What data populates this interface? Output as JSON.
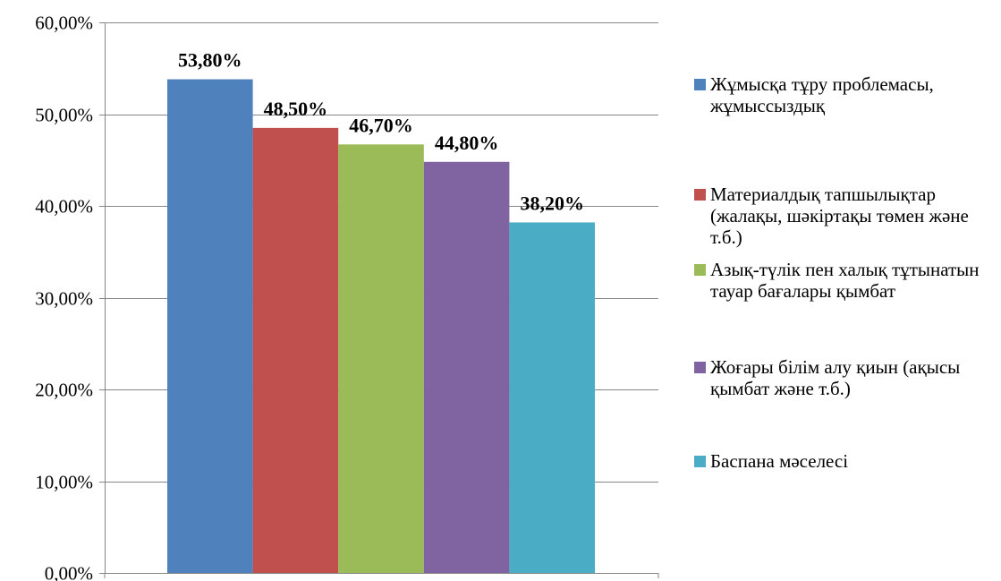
{
  "chart_data": {
    "type": "bar",
    "title": "",
    "xlabel": "",
    "ylabel": "",
    "ylim": [
      0,
      60
    ],
    "ytick_values": [
      0,
      10,
      20,
      30,
      40,
      50,
      60
    ],
    "ytick_labels": [
      "0,00%",
      "10,00%",
      "20,00%",
      "30,00%",
      "40,00%",
      "50,00%",
      "60,00%"
    ],
    "grid": true,
    "legend_position": "right",
    "series": [
      {
        "name": "Жұмысқа тұру проблемасы, жұмыссыздық",
        "value": 53.8,
        "label": "53,80%",
        "color": "#4F81BD"
      },
      {
        "name": "Материалдық тапшылықтар (жалақы, шәкіртақы төмен және т.б.)",
        "value": 48.5,
        "label": "48,50%",
        "color": "#C0504D"
      },
      {
        "name": "Азық-түлік пен халық тұтынатын тауар бағалары қымбат",
        "value": 46.7,
        "label": "46,70%",
        "color": "#9BBB59"
      },
      {
        "name": "Жоғары білім алу қиын (ақысы қымбат және т.б.)",
        "value": 44.8,
        "label": "44,80%",
        "color": "#8064A2"
      },
      {
        "name": "Баспана мәселесі",
        "value": 38.2,
        "label": "38,20%",
        "color": "#4BACC6"
      }
    ]
  }
}
